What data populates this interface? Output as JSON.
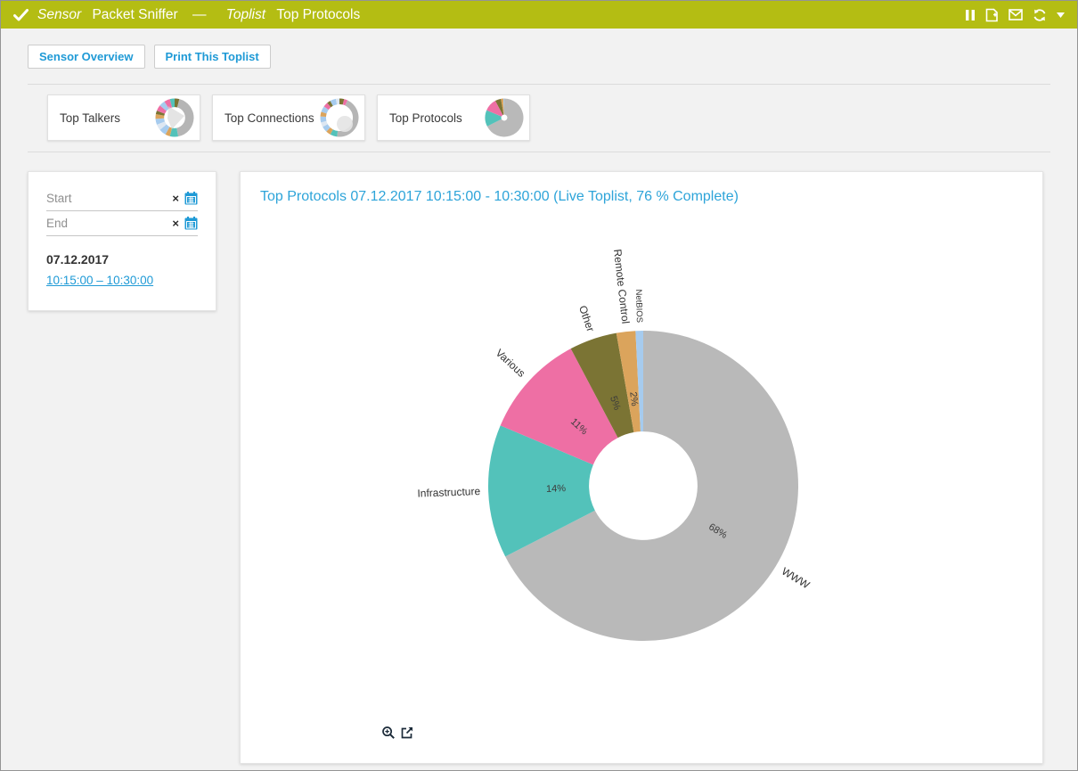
{
  "colors": {
    "header_bg": "#b4bd13",
    "accent_blue": "#1f9ad6",
    "title_blue": "#2da4d9",
    "page_bg": "#f2f2f2",
    "slice_gray": "#b9b9b9",
    "slice_teal": "#53c2ba",
    "slice_pink": "#ee6fa4",
    "slice_olive": "#7b7434",
    "slice_tan": "#dba45c",
    "slice_lightblue": "#a6cbee"
  },
  "header": {
    "status_icon": "check-icon",
    "crumb_type": "Sensor",
    "sensor_name": "Packet Sniffer",
    "separator": "—",
    "section_type": "Toplist",
    "section_name": "Top Protocols",
    "icons": [
      "pause",
      "add-report",
      "email",
      "refresh",
      "caret-down"
    ]
  },
  "toolbar": {
    "buttons": [
      {
        "label": "Sensor Overview"
      },
      {
        "label": "Print This Toplist"
      }
    ]
  },
  "tabs": [
    {
      "label": "Top Talkers",
      "thumb": {
        "hole": 0.55,
        "overlay": "fan",
        "segments": [
          [
            "#7b7434",
            4
          ],
          [
            "#b5b5b5",
            43
          ],
          [
            "#53c2ba",
            7
          ],
          [
            "#dba45c",
            4
          ],
          [
            "#a6cbee",
            6
          ],
          [
            "#dde7f2",
            5
          ],
          [
            "#a6cbee",
            5
          ],
          [
            "#dba45c",
            4
          ],
          [
            "#7b7434",
            3
          ],
          [
            "#ee6fa4",
            5
          ],
          [
            "#a6cbee",
            5
          ],
          [
            "#ee6fa4",
            5
          ],
          [
            "#53c2ba",
            4
          ]
        ]
      }
    },
    {
      "label": "Top Connections",
      "thumb": {
        "hole": 0.7,
        "overlay": "blob",
        "segments": [
          [
            "#7b7434",
            4
          ],
          [
            "#ee6fa4",
            3
          ],
          [
            "#b5b5b5",
            45
          ],
          [
            "#53c2ba",
            6
          ],
          [
            "#dba45c",
            4
          ],
          [
            "#a6cbee",
            5
          ],
          [
            "#dde7f2",
            4
          ],
          [
            "#a6cbee",
            5
          ],
          [
            "#dba45c",
            4
          ],
          [
            "#a6cbee",
            5
          ],
          [
            "#ee6fa4",
            4
          ],
          [
            "#7b7434",
            3
          ],
          [
            "#a6cbee",
            5
          ],
          [
            "#dde7f2",
            3
          ]
        ]
      }
    },
    {
      "label": "Top Protocols",
      "thumb": {
        "hole": 0.16,
        "overlay": null,
        "segments": "chart"
      }
    }
  ],
  "filter_panel": {
    "start_placeholder": "Start",
    "end_placeholder": "End",
    "clear_symbol": "×",
    "calendar_icon": "calendar-icon",
    "date": "07.12.2017",
    "time_range": "10:15:00 – 10:30:00"
  },
  "toplist": {
    "title": "Top Protocols 07.12.2017 10:15:00 - 10:30:00 (Live Toplist, 76 % Complete)"
  },
  "chart_data": {
    "type": "pie",
    "subtype": "donut",
    "title": "Top Protocols 07.12.2017 10:15:00 - 10:30:00 (Live Toplist, 76 % Complete)",
    "legend_position": "labels-around-slices",
    "start_angle_deg": 0,
    "direction": "clockwise",
    "inner_radius_ratio": 0.35,
    "slices": [
      {
        "label": "WWW",
        "value": 68,
        "pct_label": "68%",
        "color": "#b9b9b9"
      },
      {
        "label": "Infrastructure",
        "value": 14,
        "pct_label": "14%",
        "color": "#53c2ba"
      },
      {
        "label": "Various",
        "value": 11,
        "pct_label": "11%",
        "color": "#ee6fa4"
      },
      {
        "label": "Other",
        "value": 5,
        "pct_label": "5%",
        "color": "#7b7434"
      },
      {
        "label": "Remote Control",
        "value": 2,
        "pct_label": "2%",
        "color": "#dba45c"
      },
      {
        "label": "NetBIOS",
        "value": 0.8,
        "pct_label": "",
        "color": "#a6cbee"
      }
    ]
  },
  "chart_footer": {
    "icons": [
      "zoom-in",
      "open-external"
    ]
  }
}
